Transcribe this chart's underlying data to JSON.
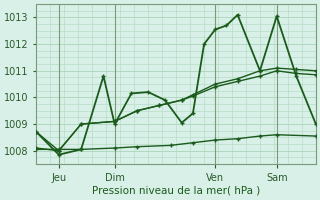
{
  "background_color": "#cce8d8",
  "plot_bg": "#d8f0e8",
  "grid_color": "#b0d8c0",
  "line_color": "#1a5a1a",
  "title": "Pression niveau de la mer( hPa )",
  "ylim": [
    1007.5,
    1013.5
  ],
  "yticks": [
    1008,
    1009,
    1010,
    1011,
    1012,
    1013
  ],
  "xlim": [
    0,
    100
  ],
  "day_labels": [
    "Jeu",
    "Dim",
    "Ven",
    "Sam"
  ],
  "day_positions": [
    8,
    28,
    64,
    86
  ],
  "series_flat_x": [
    0,
    8,
    16,
    28,
    36,
    48,
    56,
    64,
    72,
    80,
    86,
    100
  ],
  "series_flat_y": [
    1008.05,
    1008.05,
    1008.05,
    1008.1,
    1008.15,
    1008.2,
    1008.3,
    1008.4,
    1008.45,
    1008.55,
    1008.6,
    1008.55
  ],
  "series_smooth1_x": [
    0,
    8,
    16,
    28,
    36,
    44,
    52,
    56,
    64,
    72,
    80,
    86,
    93,
    100
  ],
  "series_smooth1_y": [
    1008.7,
    1008.0,
    1009.0,
    1009.1,
    1009.5,
    1009.7,
    1009.9,
    1010.1,
    1010.5,
    1010.7,
    1011.0,
    1011.1,
    1011.05,
    1011.0
  ],
  "series_smooth2_x": [
    0,
    8,
    16,
    28,
    36,
    44,
    52,
    56,
    64,
    72,
    80,
    86,
    93,
    100
  ],
  "series_smooth2_y": [
    1008.1,
    1008.0,
    1009.0,
    1009.1,
    1009.5,
    1009.7,
    1009.9,
    1010.05,
    1010.4,
    1010.6,
    1010.8,
    1011.0,
    1010.9,
    1010.85
  ],
  "series_volatile_x": [
    0,
    8,
    16,
    24,
    28,
    34,
    40,
    46,
    52,
    56,
    60,
    64,
    68,
    72,
    80,
    86,
    93,
    100
  ],
  "series_volatile_y": [
    1008.7,
    1007.85,
    1008.05,
    1010.8,
    1009.0,
    1010.15,
    1010.2,
    1009.9,
    1009.05,
    1009.4,
    1012.0,
    1012.55,
    1012.7,
    1013.1,
    1011.0,
    1013.05,
    1010.8,
    1009.0
  ]
}
